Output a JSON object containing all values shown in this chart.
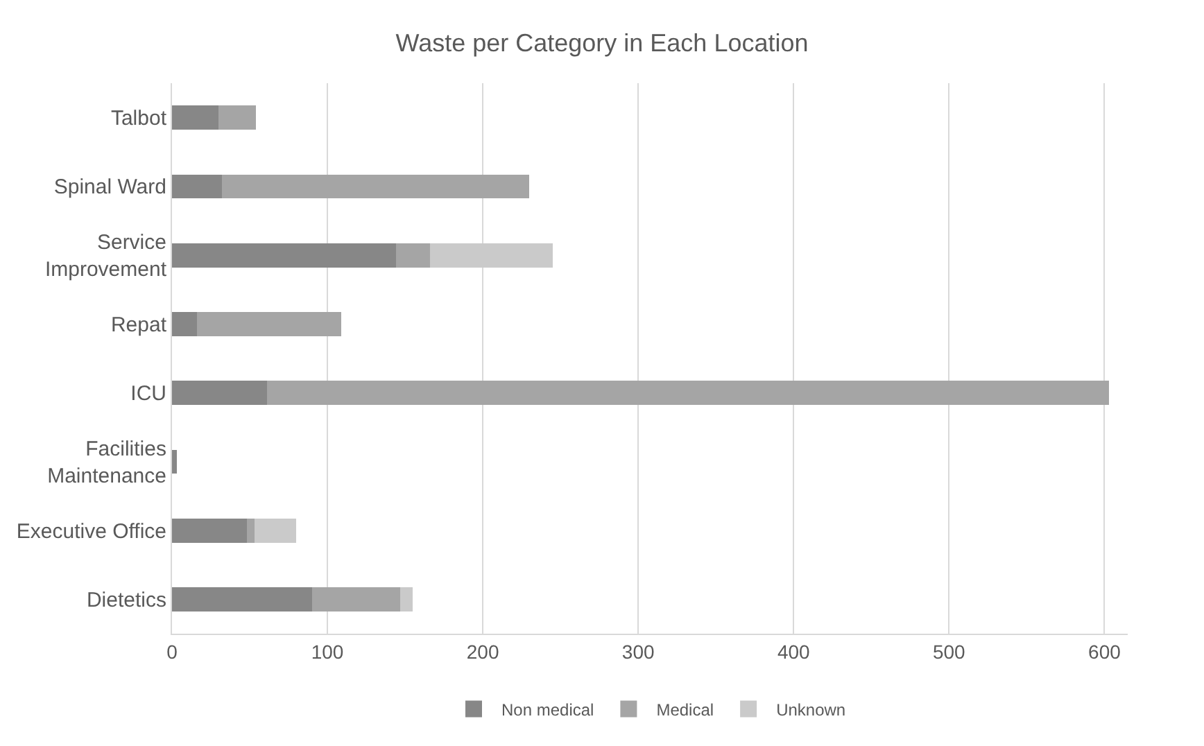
{
  "chart_data": {
    "type": "bar",
    "orientation": "horizontal",
    "stacked": true,
    "title": "Waste per Category in Each Location",
    "categories": [
      "Talbot",
      "Spinal Ward",
      "Service Improvement",
      "Repat",
      "ICU",
      "Facilities Maintenance",
      "Executive Office",
      "Dietetics"
    ],
    "series": [
      {
        "name": "Non medical",
        "color": "#878787",
        "values": [
          30,
          32,
          144,
          16,
          61,
          3,
          48,
          90
        ]
      },
      {
        "name": "Medical",
        "color": "#a5a5a5",
        "values": [
          24,
          198,
          22,
          93,
          542,
          null,
          5,
          57
        ]
      },
      {
        "name": "Unknown",
        "color": "#cacaca",
        "values": [
          null,
          null,
          79,
          null,
          null,
          null,
          27,
          8
        ]
      }
    ],
    "xlim": [
      0,
      615
    ],
    "xticks": [
      0,
      100,
      200,
      300,
      400,
      500,
      600
    ],
    "grid": "x",
    "legend": "bottom"
  }
}
